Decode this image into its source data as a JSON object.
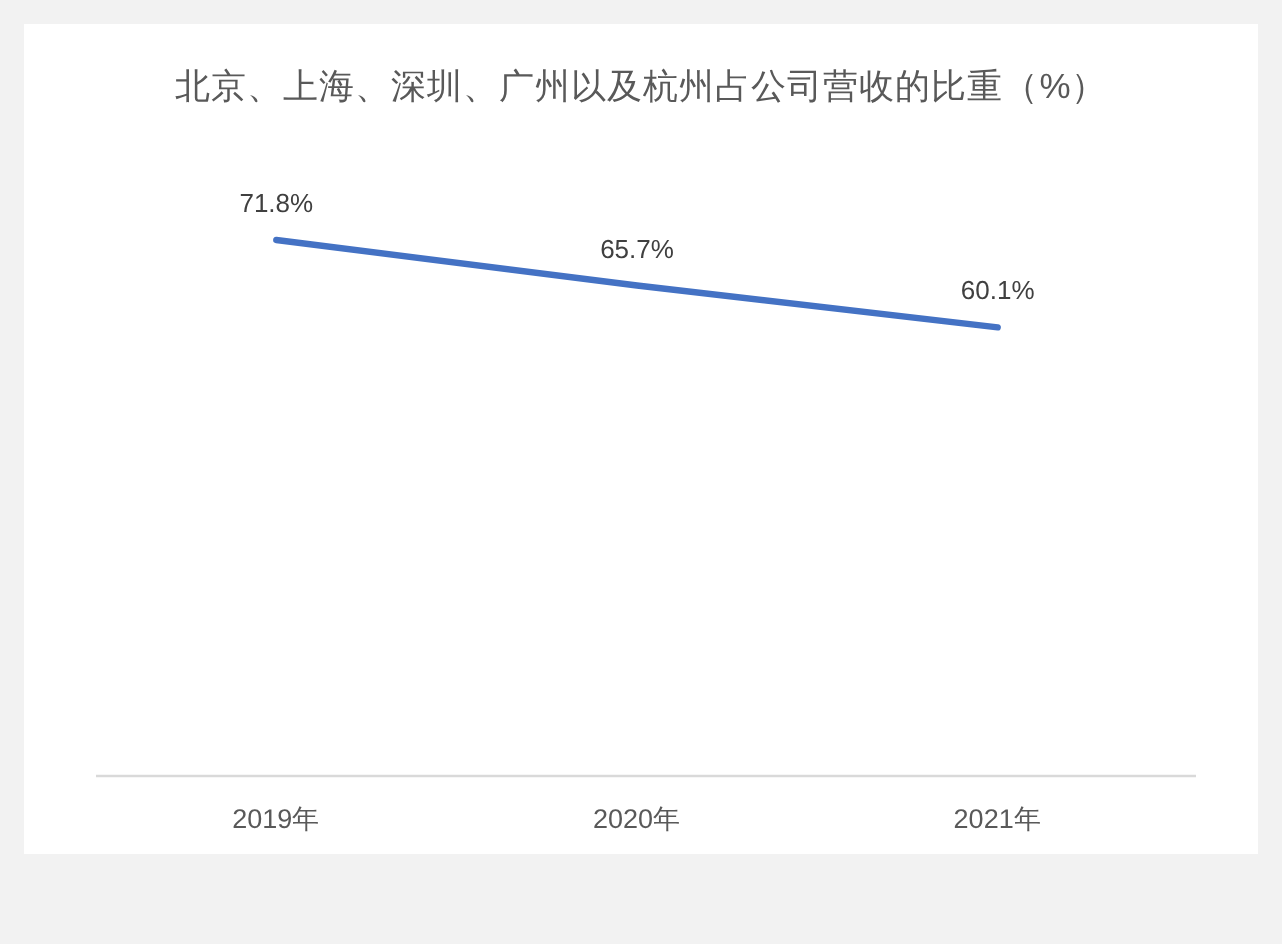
{
  "chart_data": {
    "type": "line",
    "title": "北京、上海、深圳、广州以及杭州占公司营收的比重（%）",
    "categories": [
      "2019年",
      "2020年",
      "2021年"
    ],
    "series": [
      {
        "color": "#4472c4",
        "values": [
          71.8,
          65.7,
          60.1
        ],
        "value_labels": [
          "71.8%",
          "65.7%",
          "60.1%"
        ]
      }
    ],
    "tick_labels": "x",
    "marker": "none",
    "line_style": "solid"
  }
}
